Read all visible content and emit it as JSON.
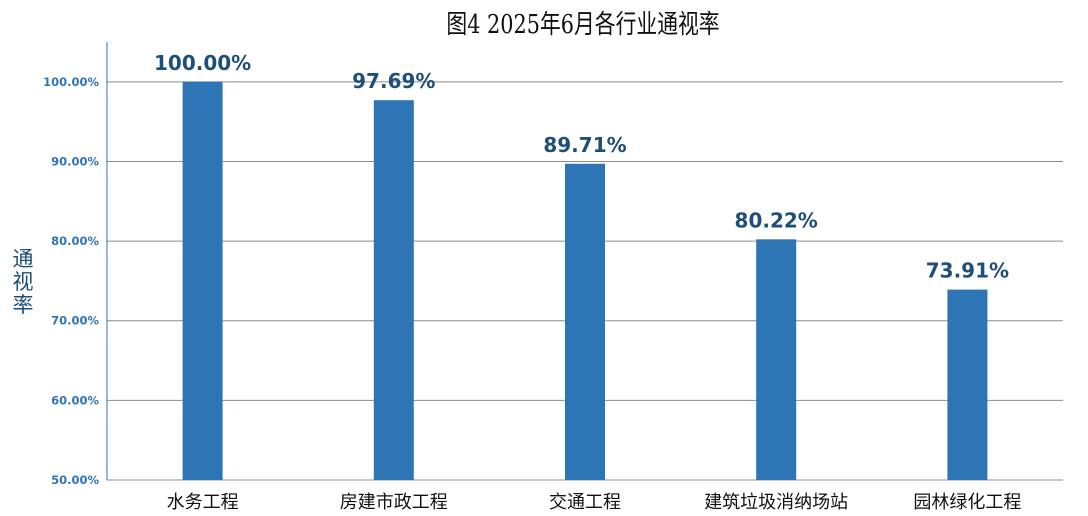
{
  "chart_data": {
    "type": "bar",
    "title": "图4   2025年6月各行业通视率",
    "xlabel": "",
    "ylabel": "通视率",
    "categories": [
      "水务工程",
      "房建市政工程",
      "交通工程",
      "建筑垃圾消纳场站",
      "园林绿化工程"
    ],
    "values": [
      100.0,
      97.69,
      89.71,
      80.22,
      73.91
    ],
    "data_labels": [
      "100.00%",
      "97.69%",
      "89.71%",
      "80.22%",
      "73.91%"
    ],
    "ylim": [
      50,
      105
    ],
    "yticks": [
      50,
      60,
      70,
      80,
      90,
      100
    ],
    "ytick_labels": [
      "50.00%",
      "60.00%",
      "70.00%",
      "80.00%",
      "90.00%",
      "100.00%"
    ],
    "grid": true,
    "bar_color": "#2e75b6",
    "label_color": "#1f4e79",
    "tick_color": "#2e75b6"
  }
}
